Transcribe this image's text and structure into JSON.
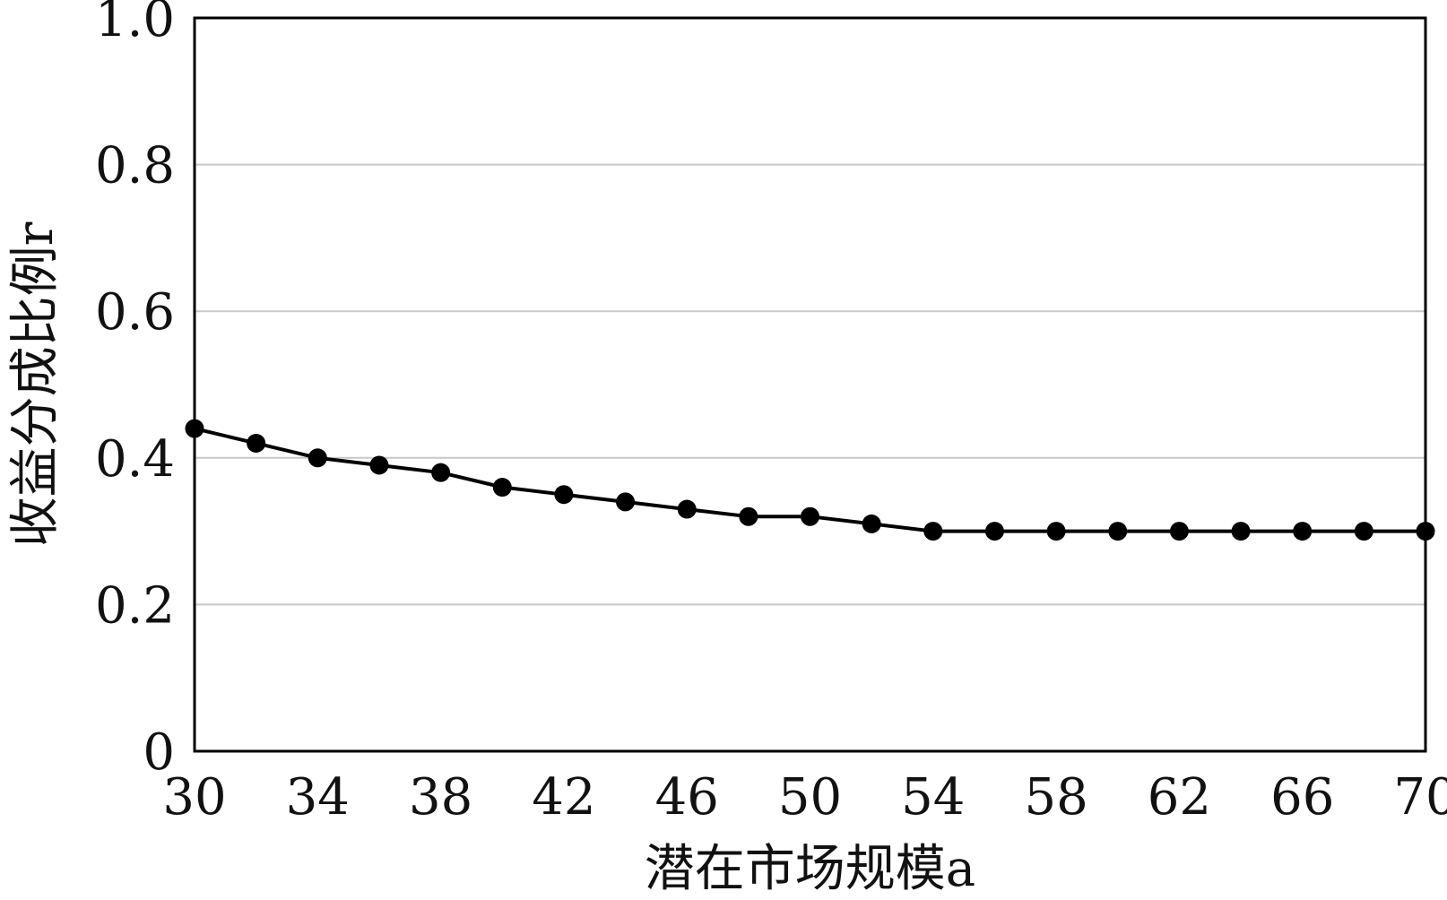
{
  "chart_data": {
    "type": "line",
    "title": "",
    "xlabel": "潜在市场规模a",
    "ylabel": "收益分成比例r",
    "x_ticks": [
      "30",
      "34",
      "38",
      "42",
      "46",
      "50",
      "54",
      "58",
      "62",
      "66",
      "70"
    ],
    "y_ticks": [
      "0",
      "0.2",
      "0.4",
      "0.6",
      "0.8",
      "1.0"
    ],
    "xlim": [
      30,
      70
    ],
    "ylim": [
      0,
      1.0
    ],
    "grid": "horizontal",
    "legend": "none",
    "colors": {
      "line": "#000000",
      "marker": "#000000",
      "grid": "#c8c8c8",
      "frame": "#000000"
    },
    "series": [
      {
        "x": [
          30,
          32,
          34,
          36,
          38,
          40,
          42,
          44,
          46,
          48,
          50,
          52,
          54,
          56,
          58,
          60,
          62,
          64,
          66,
          68,
          70
        ],
        "values": [
          0.44,
          0.42,
          0.4,
          0.39,
          0.38,
          0.36,
          0.35,
          0.34,
          0.33,
          0.32,
          0.32,
          0.31,
          0.3,
          0.3,
          0.3,
          0.3,
          0.3,
          0.3,
          0.3,
          0.3,
          0.3
        ]
      }
    ]
  }
}
